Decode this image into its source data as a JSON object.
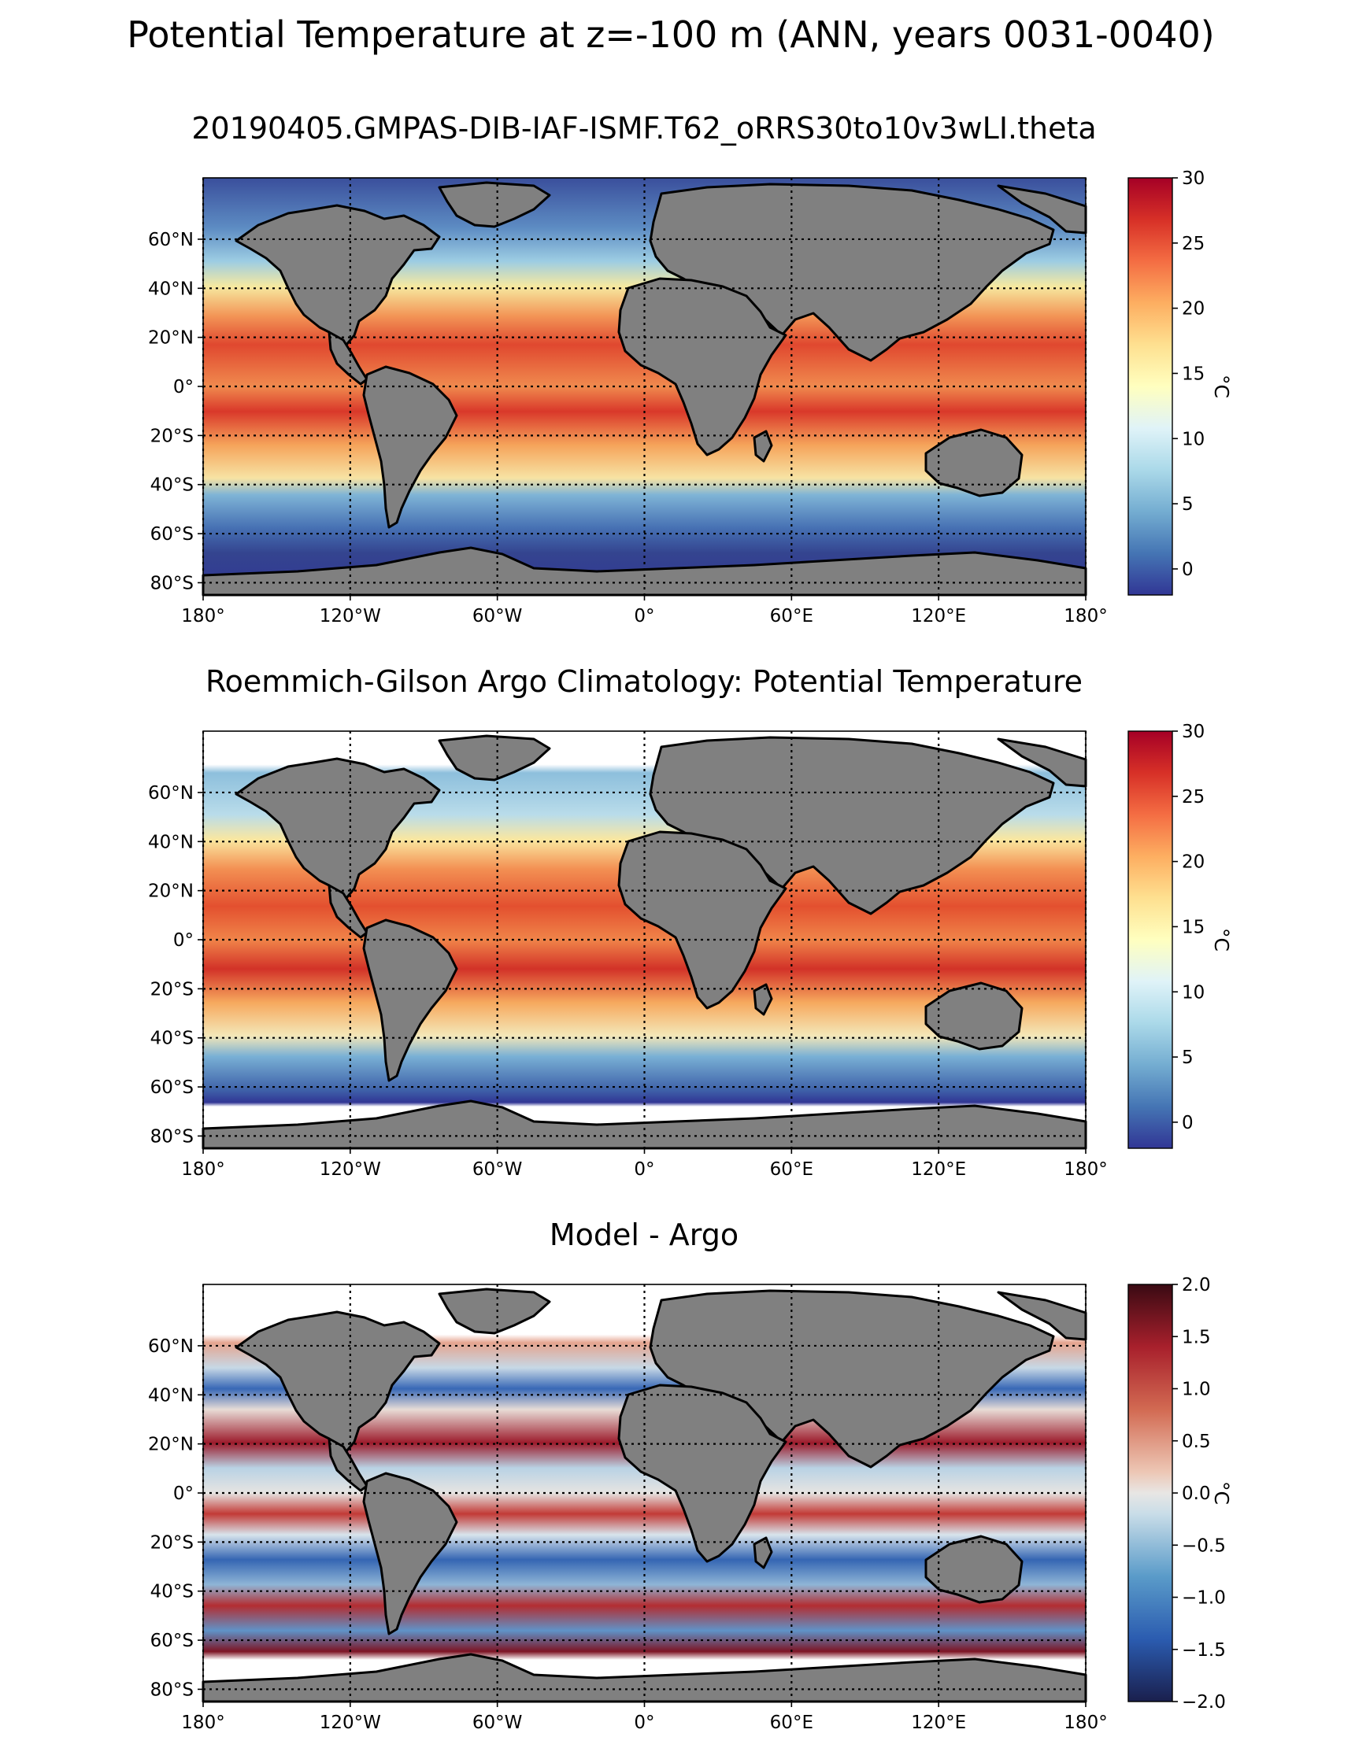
{
  "figure": {
    "suptitle": "Potential Temperature at z=-100 m (ANN, years 0031-0040)"
  },
  "map_ticks": {
    "lon": [
      "180°",
      "120°W",
      "60°W",
      "0°",
      "60°E",
      "120°E",
      "180°"
    ],
    "lat": [
      "60°N",
      "40°N",
      "20°N",
      "0°",
      "20°S",
      "40°S",
      "60°S",
      "80°S"
    ]
  },
  "chart_data": [
    {
      "type": "heatmap",
      "title": "20190405.GMPAS-DIB-IAF-ISMF.T62_oRRS30to10v3wLI.theta",
      "x_range": [
        -180,
        180
      ],
      "y_range": [
        -85,
        85
      ],
      "colorbar": {
        "label": "°C",
        "range": [
          -2,
          30
        ],
        "ticks": [
          "30",
          "25",
          "20",
          "15",
          "10",
          "5",
          "0"
        ],
        "colormap": "RdYlBu_r"
      }
    },
    {
      "type": "heatmap",
      "title": "Roemmich-Gilson Argo Climatology: Potential Temperature",
      "x_range": [
        -180,
        180
      ],
      "y_range": [
        -85,
        85
      ],
      "colorbar": {
        "label": "°C",
        "range": [
          -2,
          30
        ],
        "ticks": [
          "30",
          "25",
          "20",
          "15",
          "10",
          "5",
          "0"
        ],
        "colormap": "RdYlBu_r"
      }
    },
    {
      "type": "heatmap",
      "title": "Model - Argo",
      "x_range": [
        -180,
        180
      ],
      "y_range": [
        -85,
        85
      ],
      "colorbar": {
        "label": "°C",
        "range": [
          -2,
          2
        ],
        "ticks": [
          "2.0",
          "1.5",
          "1.0",
          "0.5",
          "0.0",
          "−0.5",
          "−1.0",
          "−1.5",
          "−2.0"
        ],
        "colormap": "RdBu_r"
      }
    }
  ]
}
